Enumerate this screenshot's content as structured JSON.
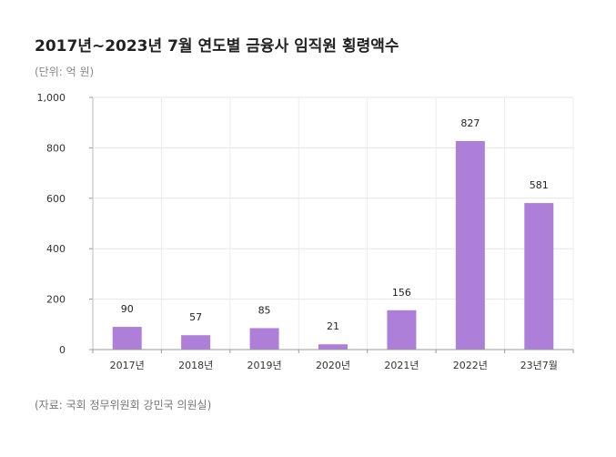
{
  "chart_data": {
    "type": "bar",
    "title": "2017년~2023년 7월 연도별 금융사 임직원 횡령액수",
    "unit_note": "(단위: 억 원)",
    "source": "(자료: 국회 정무위원회 강민국 의원실)",
    "categories": [
      "2017년",
      "2018년",
      "2019년",
      "2020년",
      "2021년",
      "2022년",
      "23년7월"
    ],
    "values": [
      90,
      57,
      85,
      21,
      156,
      827,
      581
    ],
    "data_labels": [
      "90",
      "57",
      "85",
      "21",
      "156",
      "827",
      "581"
    ],
    "ylim": [
      0,
      1000
    ],
    "yticks": [
      0,
      200,
      400,
      600,
      800,
      1000
    ],
    "ytick_labels": [
      "0",
      "200",
      "400",
      "600",
      "800",
      "1,000"
    ],
    "bar_color": "#ad7fd9",
    "grid": true
  }
}
